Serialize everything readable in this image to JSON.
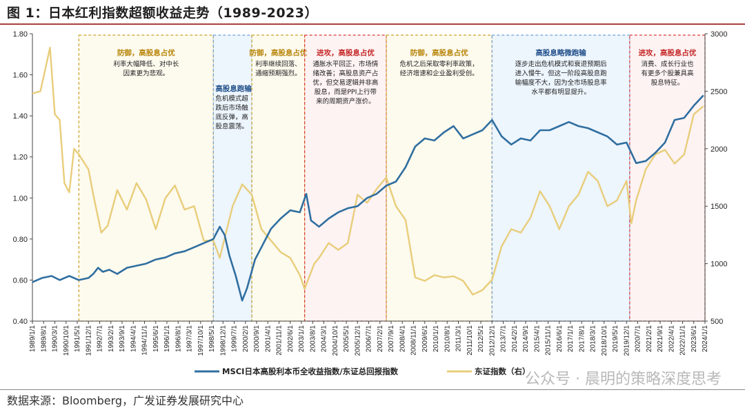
{
  "figure": {
    "title": "图 1：日本红利指数超额收益走势（1989-2023）",
    "source": "数据来源：Bloomberg，广发证券发展研究中心",
    "watermark": "公众号 · 晨明的策略深度思考"
  },
  "colors": {
    "msci": "#2f6e9f",
    "nikkei": "#e8cd7a",
    "red_box": "#d9383a",
    "blue_box": "#6fa0d8",
    "gold_box": "#c9a227"
  },
  "chart_data": {
    "type": "line",
    "x_range": [
      "1989-01-01",
      "2024-01-01"
    ],
    "x_tick_labels": [
      "1989/1/1",
      "1989/8/1",
      "1990/3/1",
      "1990/10/1",
      "1991/5/1",
      "1991/12/1",
      "1992/7/1",
      "1993/2/1",
      "1993/9/1",
      "1994/4/1",
      "1994/11/1",
      "1995/6/1",
      "1996/1/1",
      "1996/8/1",
      "1997/3/1",
      "1997/10/1",
      "1998/5/1",
      "1998/12/1",
      "1999/7/1",
      "2000/2/1",
      "2000/9/1",
      "2001/4/1",
      "2001/11/1",
      "2002/6/1",
      "2003/1/1",
      "2003/8/1",
      "2004/3/1",
      "2004/10/1",
      "2005/5/1",
      "2005/12/1",
      "2006/7/1",
      "2007/2/1",
      "2007/9/1",
      "2008/4/1",
      "2008/11/1",
      "2009/6/1",
      "2010/1/1",
      "2010/8/1",
      "2011/3/1",
      "2011/10/1",
      "2012/5/1",
      "2012/12/1",
      "2013/7/1",
      "2014/2/1",
      "2014/9/1",
      "2015/4/1",
      "2015/11/1",
      "2016/6/1",
      "2017/1/1",
      "2017/8/1",
      "2018/3/1",
      "2018/10/1",
      "2019/5/1",
      "2019/12/1",
      "2020/7/1",
      "2021/2/1",
      "2021/9/1",
      "2022/4/1",
      "2022/11/1",
      "2023/6/1",
      "2024/1/1"
    ],
    "y_left": {
      "min": 0.4,
      "max": 1.8,
      "ticks": [
        "0.40",
        "0.60",
        "0.80",
        "1.00",
        "1.20",
        "1.40",
        "1.60",
        "1.80"
      ]
    },
    "y_right": {
      "min": 500,
      "max": 3000,
      "ticks": [
        "500",
        "1000",
        "1500",
        "2000",
        "2500",
        "3000"
      ]
    },
    "series": [
      {
        "name": "MSCI日本高股利本币全收益指数/东证总回报指数",
        "axis": "left",
        "points": [
          [
            "1989-01",
            0.59
          ],
          [
            "1989-07",
            0.61
          ],
          [
            "1990-01",
            0.62
          ],
          [
            "1990-06",
            0.6
          ],
          [
            "1990-12",
            0.62
          ],
          [
            "1991-06",
            0.6
          ],
          [
            "1991-12",
            0.61
          ],
          [
            "1992-03",
            0.63
          ],
          [
            "1992-06",
            0.66
          ],
          [
            "1992-09",
            0.64
          ],
          [
            "1993-01",
            0.65
          ],
          [
            "1993-06",
            0.63
          ],
          [
            "1993-12",
            0.66
          ],
          [
            "1994-06",
            0.67
          ],
          [
            "1994-12",
            0.68
          ],
          [
            "1995-06",
            0.7
          ],
          [
            "1995-12",
            0.71
          ],
          [
            "1996-06",
            0.73
          ],
          [
            "1996-12",
            0.74
          ],
          [
            "1997-06",
            0.76
          ],
          [
            "1997-12",
            0.78
          ],
          [
            "1998-06",
            0.8
          ],
          [
            "1998-10",
            0.86
          ],
          [
            "1999-01",
            0.82
          ],
          [
            "1999-04",
            0.72
          ],
          [
            "1999-08",
            0.62
          ],
          [
            "1999-12",
            0.5
          ],
          [
            "2000-03",
            0.56
          ],
          [
            "2000-08",
            0.7
          ],
          [
            "2000-12",
            0.76
          ],
          [
            "2001-06",
            0.85
          ],
          [
            "2001-12",
            0.9
          ],
          [
            "2002-06",
            0.94
          ],
          [
            "2002-12",
            0.93
          ],
          [
            "2003-04",
            1.02
          ],
          [
            "2003-07",
            0.89
          ],
          [
            "2003-12",
            0.86
          ],
          [
            "2004-06",
            0.9
          ],
          [
            "2004-12",
            0.93
          ],
          [
            "2005-06",
            0.95
          ],
          [
            "2005-12",
            0.96
          ],
          [
            "2006-06",
            1.0
          ],
          [
            "2006-12",
            1.02
          ],
          [
            "2007-06",
            1.06
          ],
          [
            "2007-12",
            1.08
          ],
          [
            "2008-06",
            1.15
          ],
          [
            "2008-12",
            1.25
          ],
          [
            "2009-06",
            1.29
          ],
          [
            "2009-12",
            1.28
          ],
          [
            "2010-06",
            1.32
          ],
          [
            "2010-12",
            1.35
          ],
          [
            "2011-06",
            1.29
          ],
          [
            "2011-12",
            1.31
          ],
          [
            "2012-06",
            1.33
          ],
          [
            "2012-12",
            1.38
          ],
          [
            "2013-06",
            1.3
          ],
          [
            "2013-12",
            1.26
          ],
          [
            "2014-06",
            1.29
          ],
          [
            "2014-12",
            1.28
          ],
          [
            "2015-06",
            1.33
          ],
          [
            "2015-12",
            1.33
          ],
          [
            "2016-06",
            1.35
          ],
          [
            "2016-12",
            1.37
          ],
          [
            "2017-06",
            1.35
          ],
          [
            "2017-12",
            1.34
          ],
          [
            "2018-06",
            1.32
          ],
          [
            "2018-12",
            1.3
          ],
          [
            "2019-06",
            1.26
          ],
          [
            "2019-12",
            1.27
          ],
          [
            "2020-06",
            1.17
          ],
          [
            "2020-12",
            1.18
          ],
          [
            "2021-06",
            1.22
          ],
          [
            "2021-12",
            1.27
          ],
          [
            "2022-06",
            1.38
          ],
          [
            "2022-12",
            1.39
          ],
          [
            "2023-06",
            1.45
          ],
          [
            "2023-12",
            1.5
          ]
        ]
      },
      {
        "name": "东证指数（右）",
        "axis": "right",
        "points": [
          [
            "1989-01",
            2480
          ],
          [
            "1989-06",
            2500
          ],
          [
            "1989-12",
            2880
          ],
          [
            "1990-03",
            2300
          ],
          [
            "1990-06",
            2250
          ],
          [
            "1990-09",
            1700
          ],
          [
            "1990-12",
            1620
          ],
          [
            "1991-03",
            2000
          ],
          [
            "1991-06",
            1950
          ],
          [
            "1991-12",
            1820
          ],
          [
            "1992-03",
            1600
          ],
          [
            "1992-08",
            1270
          ],
          [
            "1992-12",
            1330
          ],
          [
            "1993-06",
            1640
          ],
          [
            "1993-12",
            1470
          ],
          [
            "1994-06",
            1700
          ],
          [
            "1994-12",
            1560
          ],
          [
            "1995-06",
            1300
          ],
          [
            "1995-12",
            1570
          ],
          [
            "1996-06",
            1680
          ],
          [
            "1996-12",
            1470
          ],
          [
            "1997-06",
            1500
          ],
          [
            "1997-12",
            1200
          ],
          [
            "1998-06",
            1200
          ],
          [
            "1998-10",
            1050
          ],
          [
            "1999-06",
            1500
          ],
          [
            "1999-12",
            1690
          ],
          [
            "2000-06",
            1600
          ],
          [
            "2000-12",
            1300
          ],
          [
            "2001-06",
            1200
          ],
          [
            "2001-12",
            1100
          ],
          [
            "2002-06",
            1050
          ],
          [
            "2002-12",
            900
          ],
          [
            "2003-03",
            780
          ],
          [
            "2003-09",
            1000
          ],
          [
            "2003-12",
            1050
          ],
          [
            "2004-06",
            1180
          ],
          [
            "2004-12",
            1120
          ],
          [
            "2005-06",
            1180
          ],
          [
            "2005-12",
            1600
          ],
          [
            "2006-06",
            1530
          ],
          [
            "2006-12",
            1650
          ],
          [
            "2007-06",
            1750
          ],
          [
            "2007-12",
            1500
          ],
          [
            "2008-06",
            1380
          ],
          [
            "2008-12",
            880
          ],
          [
            "2009-06",
            850
          ],
          [
            "2009-12",
            900
          ],
          [
            "2010-06",
            880
          ],
          [
            "2010-12",
            890
          ],
          [
            "2011-06",
            850
          ],
          [
            "2011-12",
            730
          ],
          [
            "2012-06",
            770
          ],
          [
            "2012-12",
            860
          ],
          [
            "2013-06",
            1150
          ],
          [
            "2013-12",
            1300
          ],
          [
            "2014-06",
            1270
          ],
          [
            "2014-12",
            1400
          ],
          [
            "2015-06",
            1630
          ],
          [
            "2015-12",
            1500
          ],
          [
            "2016-06",
            1300
          ],
          [
            "2016-12",
            1500
          ],
          [
            "2017-06",
            1600
          ],
          [
            "2017-12",
            1800
          ],
          [
            "2018-06",
            1720
          ],
          [
            "2018-12",
            1500
          ],
          [
            "2019-06",
            1550
          ],
          [
            "2019-12",
            1720
          ],
          [
            "2020-03",
            1350
          ],
          [
            "2020-06",
            1550
          ],
          [
            "2020-12",
            1820
          ],
          [
            "2021-06",
            1950
          ],
          [
            "2021-12",
            1990
          ],
          [
            "2022-06",
            1870
          ],
          [
            "2022-12",
            1950
          ],
          [
            "2023-06",
            2300
          ],
          [
            "2023-12",
            2370
          ]
        ]
      }
    ],
    "legend": {
      "position": "bottom-center"
    }
  },
  "periods": [
    {
      "start": "1991-06",
      "end": "1998-06",
      "style": "gold",
      "title": "防御，高股息占优",
      "text": [
        "利率大幅降低、对中长",
        "因素更为悲观。"
      ]
    },
    {
      "start": "1998-06",
      "end": "2000-06",
      "style": "blue",
      "title": "高股息跑输",
      "text": [
        "危机模式超",
        "跌后市场触",
        "底反弹，高",
        "股息震荡。"
      ]
    },
    {
      "start": "2000-06",
      "end": "2003-03",
      "style": "gold",
      "title": "防御，高股息占优",
      "text": [
        "利率继续回落、",
        "通缩预期强烈。"
      ]
    },
    {
      "start": "2003-03",
      "end": "2007-06",
      "style": "red",
      "title": "进攻，高股息占优",
      "text": [
        "通胀水平回正，市场情",
        "绪改善；高股息资产占",
        "优，但交易逻辑并非高",
        "股息，而是PPI上行带",
        "来的周期资产涨价。"
      ]
    },
    {
      "start": "2007-06",
      "end": "2012-12",
      "style": "gold",
      "title": "防御，高股息占优",
      "text": [
        "危机之后采取零利率政策，",
        "经济增速和企业盈利受创。"
      ]
    },
    {
      "start": "2012-12",
      "end": "2020-02",
      "style": "blue",
      "title": "高股息略微跑输",
      "text": [
        "逐步走出危机模式和衰退预期后",
        "进入慢牛。但这一阶段高股息跑",
        "输幅度不大，因为全市场股息率",
        "水平都有明显提升。"
      ]
    },
    {
      "start": "2020-02",
      "end": "2024-01",
      "style": "red",
      "title": "进攻，高股息占优",
      "text": [
        "消费、成长行业也",
        "有更多个股兼具高",
        "股息特征。"
      ]
    }
  ]
}
